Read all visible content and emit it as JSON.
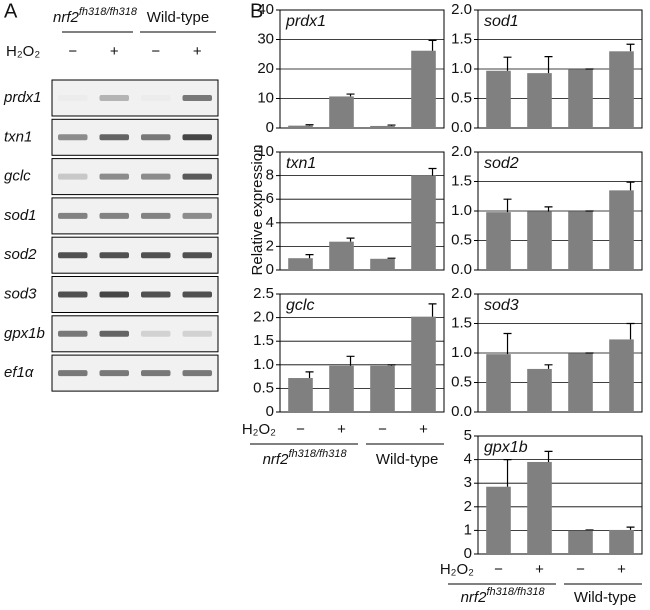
{
  "panel_a": {
    "label": "A",
    "groups": [
      {
        "name": "nrf2",
        "sup": "fh318/fh318"
      },
      {
        "name": "Wild-type"
      }
    ],
    "treatment": "H₂O₂",
    "signs": [
      "−",
      "+",
      "−",
      "+"
    ],
    "genes": [
      "prdx1",
      "txn1",
      "gclc",
      "sod1",
      "sod2",
      "sod3",
      "gpx1b",
      "ef1α"
    ]
  },
  "panel_b": {
    "label": "B",
    "y_label": "Relative expression",
    "groups": [
      {
        "name": "nrf2",
        "sup": "fh318/fh318"
      },
      {
        "name": "Wild-type"
      }
    ],
    "treatment": "H₂O₂",
    "signs": [
      "−",
      "+",
      "−",
      "+"
    ]
  },
  "chart_data": [
    {
      "type": "bar",
      "title": "prdx1",
      "color": "#808080",
      "values": [
        0.8,
        10.7,
        0.7,
        26.2
      ],
      "errors": [
        0.3,
        0.8,
        0.3,
        3.5
      ],
      "ylim": [
        0,
        40
      ],
      "yticks": [
        0,
        10,
        20,
        30,
        40
      ],
      "grid": true
    },
    {
      "type": "bar",
      "title": "txn1",
      "color": "#808080",
      "values": [
        1.0,
        2.4,
        0.95,
        8.0
      ],
      "errors": [
        0.3,
        0.3,
        0.05,
        0.6
      ],
      "ylim": [
        0,
        10
      ],
      "yticks": [
        0,
        2,
        4,
        6,
        8,
        10
      ],
      "grid": true
    },
    {
      "type": "bar",
      "title": "gclc",
      "color": "#808080",
      "values": [
        0.72,
        0.98,
        0.98,
        2.02
      ],
      "errors": [
        0.13,
        0.2,
        0.02,
        0.27
      ],
      "ylim": [
        0,
        2.5
      ],
      "yticks": [
        0,
        0.5,
        {
          "value": 1,
          "label": "1.0"
        },
        1.5,
        {
          "value": 2,
          "label": "2.0"
        },
        2.5
      ],
      "grid": true
    },
    {
      "type": "bar",
      "title": "sod1",
      "color": "#808080",
      "values": [
        0.97,
        0.93,
        0.99,
        1.3
      ],
      "errors": [
        0.23,
        0.28,
        0.01,
        0.12
      ],
      "ylim": [
        0,
        2
      ],
      "yticks": [
        {
          "value": 0,
          "label": "0.0"
        },
        0.5,
        {
          "value": 1,
          "label": "1.0"
        },
        1.5,
        {
          "value": 2,
          "label": "2.0"
        }
      ],
      "grid": true
    },
    {
      "type": "bar",
      "title": "sod2",
      "color": "#808080",
      "values": [
        0.98,
        0.99,
        0.99,
        1.35
      ],
      "errors": [
        0.22,
        0.08,
        0.01,
        0.14
      ],
      "ylim": [
        0,
        2
      ],
      "yticks": [
        {
          "value": 0,
          "label": "0.0"
        },
        0.5,
        {
          "value": 1,
          "label": "1.0"
        },
        1.5,
        {
          "value": 2,
          "label": "2.0"
        }
      ],
      "grid": true
    },
    {
      "type": "bar",
      "title": "sod3",
      "color": "#808080",
      "values": [
        0.98,
        0.73,
        0.99,
        1.23
      ],
      "errors": [
        0.35,
        0.07,
        0.01,
        0.27
      ],
      "ylim": [
        0,
        2
      ],
      "yticks": [
        {
          "value": 0,
          "label": "0.0"
        },
        0.5,
        {
          "value": 1,
          "label": "1.0"
        },
        1.5,
        {
          "value": 2,
          "label": "2.0"
        }
      ],
      "grid": true
    },
    {
      "type": "bar",
      "title": "gpx1b",
      "color": "#808080",
      "values": [
        2.85,
        3.9,
        1.0,
        1.02
      ],
      "errors": [
        1.15,
        0.45,
        0.02,
        0.12
      ],
      "ylim": [
        0,
        5
      ],
      "yticks": [
        0,
        1,
        2,
        3,
        4,
        5
      ],
      "grid": true
    }
  ]
}
